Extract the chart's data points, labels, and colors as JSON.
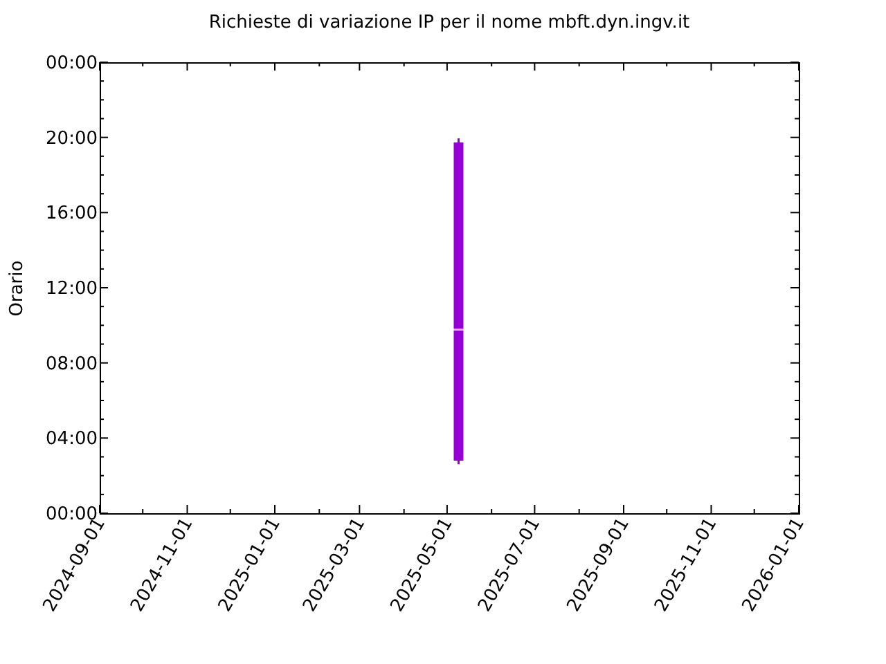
{
  "chart_data": {
    "type": "box",
    "title": "Richieste di variazione IP per il nome mbft.dyn.ingv.it",
    "ylabel": "Orario",
    "x": [
      "2025-05-09"
    ],
    "boxes": [
      {
        "low": 2.6,
        "q1": 2.8,
        "median": 9.77,
        "q3": 19.73,
        "high": 19.95
      }
    ],
    "color": "#9400d3",
    "xlim": [
      "2024-09-01",
      "2026-01-01"
    ],
    "xticks": [
      "2024-09-01",
      {
        "value": "2024-10-01",
        "label": null
      },
      "2024-11-01",
      {
        "value": "2024-12-01",
        "label": null
      },
      "2025-01-01",
      {
        "value": "2025-02-01",
        "label": null
      },
      "2025-03-01",
      {
        "value": "2025-04-01",
        "label": null
      },
      "2025-05-01",
      {
        "value": "2025-06-01",
        "label": null
      },
      "2025-07-01",
      {
        "value": "2025-08-01",
        "label": null
      },
      "2025-09-01",
      {
        "value": "2025-10-01",
        "label": null
      },
      "2025-11-01",
      {
        "value": "2025-12-01",
        "label": null
      },
      "2026-01-01"
    ],
    "ylim": [
      0,
      24
    ],
    "yticks": [
      {
        "value": 0,
        "label": "00:00"
      },
      {
        "value": 1,
        "label": null
      },
      {
        "value": 2,
        "label": null
      },
      {
        "value": 3,
        "label": null
      },
      {
        "value": 4,
        "label": "04:00"
      },
      {
        "value": 5,
        "label": null
      },
      {
        "value": 6,
        "label": null
      },
      {
        "value": 7,
        "label": null
      },
      {
        "value": 8,
        "label": "08:00"
      },
      {
        "value": 9,
        "label": null
      },
      {
        "value": 10,
        "label": null
      },
      {
        "value": 11,
        "label": null
      },
      {
        "value": 12,
        "label": "12:00"
      },
      {
        "value": 13,
        "label": null
      },
      {
        "value": 14,
        "label": null
      },
      {
        "value": 15,
        "label": null
      },
      {
        "value": 16,
        "label": "16:00"
      },
      {
        "value": 17,
        "label": null
      },
      {
        "value": 18,
        "label": null
      },
      {
        "value": 19,
        "label": null
      },
      {
        "value": 20,
        "label": "20:00"
      },
      {
        "value": 21,
        "label": null
      },
      {
        "value": 22,
        "label": null
      },
      {
        "value": 23,
        "label": null
      },
      {
        "value": 24,
        "label": "00:00"
      }
    ],
    "grid": false
  }
}
